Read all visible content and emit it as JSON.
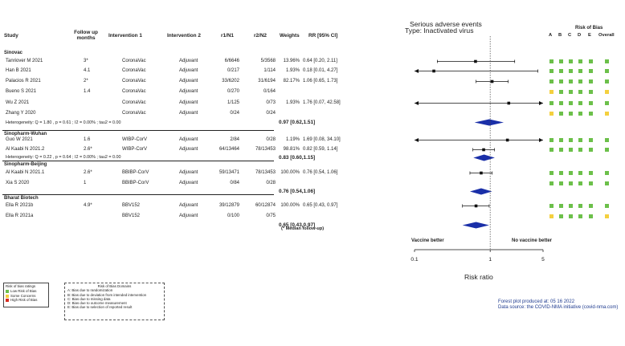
{
  "chart_data": {
    "type": "forest",
    "title": "Serious adverse events",
    "subtitle": "Type: Inactivated virus",
    "xlabel": "Risk ratio",
    "x_scale": "log",
    "xlim": [
      0.1,
      5
    ],
    "x_ticks": [
      "0.1",
      "1",
      "5"
    ],
    "direction_left": "Vaccine better",
    "direction_right": "No vaccine better",
    "columns": {
      "study": "Study",
      "follow_up": "Follow up months",
      "intervention1": "Intervention 1",
      "intervention2": "Intervention 2",
      "r1n1": "r1/N1",
      "r2n2": "r2/N2",
      "weights": "Weights",
      "rr": "RR [95% CI]"
    },
    "rob_title": "Risk of Bias",
    "rob_domains": [
      "A",
      "B",
      "C",
      "D",
      "E",
      "Overall"
    ],
    "rob_colors": {
      "low": "#6cc04a",
      "some": "#f4d03f",
      "high": "#d62b1f"
    },
    "groups": [
      {
        "name": "Sinovac",
        "studies": [
          {
            "study": "Tanriover M 2021",
            "follow": "3*",
            "int1": "CoronaVac",
            "int2": "Adjuvant",
            "r1n1": "6/6646",
            "r2n2": "5/3568",
            "weight": "13.96%",
            "rr_text": "0.64 [0.20, 2.11]",
            "rr": 0.64,
            "lo": 0.2,
            "hi": 2.11,
            "rob": [
              "low",
              "low",
              "low",
              "low",
              "low",
              "low"
            ]
          },
          {
            "study": "Han B 2021",
            "follow": "4.1",
            "int1": "CoronaVac",
            "int2": "Adjuvant",
            "r1n1": "0/217",
            "r2n2": "1/114",
            "weight": "1.93%",
            "rr_text": "0.18 [0.01, 4.27]",
            "rr": 0.18,
            "lo": 0.01,
            "hi": 4.27,
            "rob": [
              "low",
              "low",
              "low",
              "low",
              "low",
              "low"
            ]
          },
          {
            "study": "Palacios R 2021",
            "follow": "2*",
            "int1": "CoronaVac",
            "int2": "Adjuvant",
            "r1n1": "33/6202",
            "r2n2": "31/6194",
            "weight": "82.17%",
            "rr_text": "1.06 [0.65, 1.73]",
            "rr": 1.06,
            "lo": 0.65,
            "hi": 1.73,
            "rob": [
              "low",
              "low",
              "low",
              "low",
              "low",
              "low"
            ]
          },
          {
            "study": "Bueno S 2021",
            "follow": "1.4",
            "int1": "CoronaVac",
            "int2": "Adjuvant",
            "r1n1": "0/270",
            "r2n2": "0/164",
            "weight": "",
            "rr_text": "",
            "rr": null,
            "lo": null,
            "hi": null,
            "rob": [
              "some",
              "low",
              "low",
              "low",
              "low",
              "some"
            ]
          },
          {
            "study": "Wu Z 2021",
            "follow": "",
            "int1": "CoronaVac",
            "int2": "Adjuvant",
            "r1n1": "1/125",
            "r2n2": "0/73",
            "weight": "1.93%",
            "rr_text": "1.76 [0.07, 42.58]",
            "rr": 1.76,
            "lo": 0.07,
            "hi": 42.58,
            "rob": [
              "low",
              "low",
              "low",
              "low",
              "low",
              "low"
            ]
          },
          {
            "study": "Zhang Y 2020",
            "follow": "",
            "int1": "CoronaVac",
            "int2": "Adjuvant",
            "r1n1": "0/24",
            "r2n2": "0/24",
            "weight": "",
            "rr_text": "",
            "rr": null,
            "lo": null,
            "hi": null,
            "rob": [
              "some",
              "low",
              "low",
              "low",
              "low",
              "some"
            ]
          }
        ],
        "heterogeneity": "Heterogeneity: Q = 1.80 , p = 0.61 ; I2 = 0.00% ; tau2 = 0.00",
        "pooled_text": "0.97 [0.62,1.51]",
        "pooled": {
          "rr": 0.97,
          "lo": 0.62,
          "hi": 1.51
        }
      },
      {
        "name": "Sinopharm-Wuhan",
        "studies": [
          {
            "study": "Guo W 2021",
            "follow": "1.6",
            "int1": "WIBP-CorV",
            "int2": "Adjuvant",
            "r1n1": "2/84",
            "r2n2": "0/28",
            "weight": "1.19%",
            "rr_text": "1.69 [0.08, 34.10]",
            "rr": 1.69,
            "lo": 0.08,
            "hi": 34.1,
            "rob": [
              "low",
              "low",
              "low",
              "low",
              "low",
              "low"
            ]
          },
          {
            "study": "Al Kaabi N 2021.2",
            "follow": "2.6*",
            "int1": "WIBP-CorV",
            "int2": "Adjuvant",
            "r1n1": "64/13464",
            "r2n2": "78/13453",
            "weight": "98.81%",
            "rr_text": "0.82 [0.59, 1.14]",
            "rr": 0.82,
            "lo": 0.59,
            "hi": 1.14,
            "rob": [
              "low",
              "low",
              "low",
              "low",
              "low",
              "low"
            ]
          }
        ],
        "heterogeneity": "Heterogeneity: Q = 0.22 , p = 0.64 ; I2 = 0.00% ; tau2 = 0.00",
        "pooled_text": "0.83 [0.60,1.15]",
        "pooled": {
          "rr": 0.83,
          "lo": 0.6,
          "hi": 1.15
        }
      },
      {
        "name": "Sinopharm-Beijing",
        "studies": [
          {
            "study": "Al Kaabi N 2021.1",
            "follow": "2.6*",
            "int1": "BBIBP-CorV",
            "int2": "Adjuvant",
            "r1n1": "59/13471",
            "r2n2": "78/13453",
            "weight": "100.00%",
            "rr_text": "0.76 [0.54, 1.06]",
            "rr": 0.76,
            "lo": 0.54,
            "hi": 1.06,
            "rob": [
              "low",
              "low",
              "low",
              "low",
              "low",
              "low"
            ]
          },
          {
            "study": "Xia S 2020",
            "follow": "1",
            "int1": "BBIBP-CorV",
            "int2": "Adjuvant",
            "r1n1": "0/84",
            "r2n2": "0/28",
            "weight": "",
            "rr_text": "",
            "rr": null,
            "lo": null,
            "hi": null,
            "rob": [
              "low",
              "low",
              "low",
              "low",
              "low",
              "low"
            ]
          }
        ],
        "heterogeneity": "",
        "pooled_text": "0.76 [0.54,1.06]",
        "pooled": {
          "rr": 0.76,
          "lo": 0.54,
          "hi": 1.06
        }
      },
      {
        "name": "Bharat Biotech",
        "studies": [
          {
            "study": "Ella R 2021b",
            "follow": "4.9*",
            "int1": "BBV152",
            "int2": "Adjuvant",
            "r1n1": "39/12879",
            "r2n2": "60/12874",
            "weight": "100.00%",
            "rr_text": "0.65 [0.43, 0.97]",
            "rr": 0.65,
            "lo": 0.43,
            "hi": 0.97,
            "rob": [
              "low",
              "low",
              "low",
              "low",
              "low",
              "low"
            ]
          },
          {
            "study": "Ella R 2021a",
            "follow": "",
            "int1": "BBV152",
            "int2": "Adjuvant",
            "r1n1": "0/100",
            "r2n2": "0/75",
            "weight": "",
            "rr_text": "",
            "rr": null,
            "lo": null,
            "hi": null,
            "rob": [
              "some",
              "low",
              "low",
              "low",
              "low",
              "some"
            ]
          }
        ],
        "heterogeneity": "",
        "pooled_text": "0.65 [0.43,0.97]",
        "pooled": {
          "rr": 0.65,
          "lo": 0.43,
          "hi": 0.97
        }
      }
    ],
    "footnote": "(* Median follow-up)"
  },
  "legend": {
    "title": "Risk of bias ratings",
    "items": [
      "Low Risk of Bias",
      "Some Concerns",
      "High Risk of Bias"
    ]
  },
  "domains_box": {
    "title": "Risk of Bias Domains",
    "items": [
      "A: Bias due to randomization",
      "B: Bias due to deviation from intended intervention",
      "C: Bias due to missing data",
      "D: Bias due to outcome measurement",
      "E: Bias due to selection of reported result"
    ]
  },
  "credits": {
    "produced": "Forest plot produced at: 05 16 2022",
    "source": "Data source: the COVID-NMA initiative (covid-nma.com)"
  }
}
